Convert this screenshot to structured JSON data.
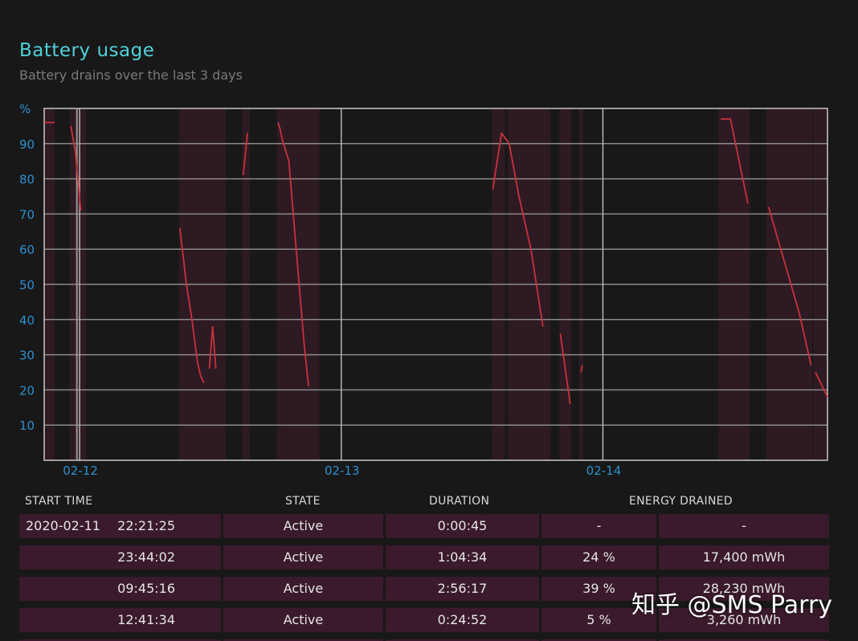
{
  "report": {
    "title": "Battery usage",
    "subtitle": "Battery drains over the last 3 days"
  },
  "colors": {
    "title": "#4fd1d9",
    "axis_labels": "#2d8fd0",
    "drain_line": "#c8323c",
    "active_band": "#2e1a22",
    "grid": "#8a8a8a",
    "row_background": "#3a1a2c"
  },
  "chart_data": {
    "type": "line",
    "title": "",
    "xlabel": "",
    "ylabel": "%",
    "x_unit": "hours since 2020-02-11 00:00",
    "xlim": [
      20.75,
      92.6
    ],
    "ylim": [
      0,
      100
    ],
    "y_ticks": [
      10,
      20,
      30,
      40,
      50,
      60,
      70,
      80,
      90
    ],
    "x_ticks": [
      {
        "label": "02-12",
        "x": 24
      },
      {
        "label": "02-13",
        "x": 48
      },
      {
        "label": "02-14",
        "x": 72
      }
    ],
    "grid": true,
    "series": [
      {
        "name": "",
        "segments": [
          [
            [
              20.75,
              96
            ],
            [
              21.7,
              96
            ]
          ],
          [
            [
              23.2,
              95
            ],
            [
              23.6,
              88
            ],
            [
              24.1,
              71
            ]
          ],
          [
            [
              33.2,
              66
            ],
            [
              33.8,
              50
            ],
            [
              34.3,
              40
            ],
            [
              34.8,
              28
            ],
            [
              35.1,
              24
            ],
            [
              35.4,
              22
            ]
          ],
          [
            [
              35.9,
              26
            ],
            [
              36.2,
              38
            ],
            [
              36.5,
              26
            ]
          ],
          [
            [
              39.0,
              81
            ],
            [
              39.4,
              93
            ]
          ],
          [
            [
              42.2,
              96
            ],
            [
              42.4,
              94
            ],
            [
              42.6,
              91
            ],
            [
              43.2,
              85
            ],
            [
              44.0,
              55
            ],
            [
              44.6,
              33
            ],
            [
              45.0,
              21
            ]
          ],
          [
            [
              61.9,
              77
            ],
            [
              62.7,
              93
            ],
            [
              63.4,
              90
            ],
            [
              64.3,
              75
            ],
            [
              65.4,
              60
            ],
            [
              66.5,
              38
            ]
          ],
          [
            [
              68.1,
              36
            ],
            [
              69.0,
              16
            ]
          ],
          [
            [
              70.0,
              25
            ],
            [
              70.1,
              27
            ]
          ],
          [
            [
              82.8,
              97
            ],
            [
              83.7,
              97
            ],
            [
              85.3,
              73
            ]
          ],
          [
            [
              87.2,
              72
            ],
            [
              88.5,
              58
            ],
            [
              90.0,
              42
            ],
            [
              91.1,
              27
            ]
          ],
          [
            [
              91.5,
              25
            ],
            [
              92.6,
              18
            ]
          ]
        ]
      }
    ],
    "active_periods": [
      [
        20.75,
        21.7
      ],
      [
        23.1,
        24.6
      ],
      [
        33.1,
        36.4
      ],
      [
        36.3,
        37.4
      ],
      [
        38.9,
        39.6
      ],
      [
        42.1,
        43.0
      ],
      [
        43.0,
        46.0
      ],
      [
        61.8,
        63.0
      ],
      [
        63.3,
        67.2
      ],
      [
        68.0,
        69.1
      ],
      [
        69.8,
        70.2
      ],
      [
        82.6,
        85.5
      ],
      [
        87.0,
        91.2
      ],
      [
        91.3,
        92.6
      ]
    ],
    "marker_x": 23.75
  },
  "table": {
    "headers": {
      "start_time": "START TIME",
      "state": "STATE",
      "duration": "DURATION",
      "energy_drained": "ENERGY DRAINED"
    },
    "rows": [
      {
        "date": "2020-02-11",
        "time": "22:21:25",
        "state": "Active",
        "duration": "0:00:45",
        "percent": "-",
        "energy": "-"
      },
      {
        "date": "",
        "time": "23:44:02",
        "state": "Active",
        "duration": "1:04:34",
        "percent": "24 %",
        "energy": "17,400 mWh"
      },
      {
        "date": "",
        "time": "09:45:16",
        "state": "Active",
        "duration": "2:56:17",
        "percent": "39 %",
        "energy": "28,230 mWh"
      },
      {
        "date": "",
        "time": "12:41:34",
        "state": "Active",
        "duration": "0:24:52",
        "percent": "5 %",
        "energy": "3,260 mWh"
      }
    ]
  },
  "watermark": {
    "text": "知乎 @SMS Parry"
  }
}
